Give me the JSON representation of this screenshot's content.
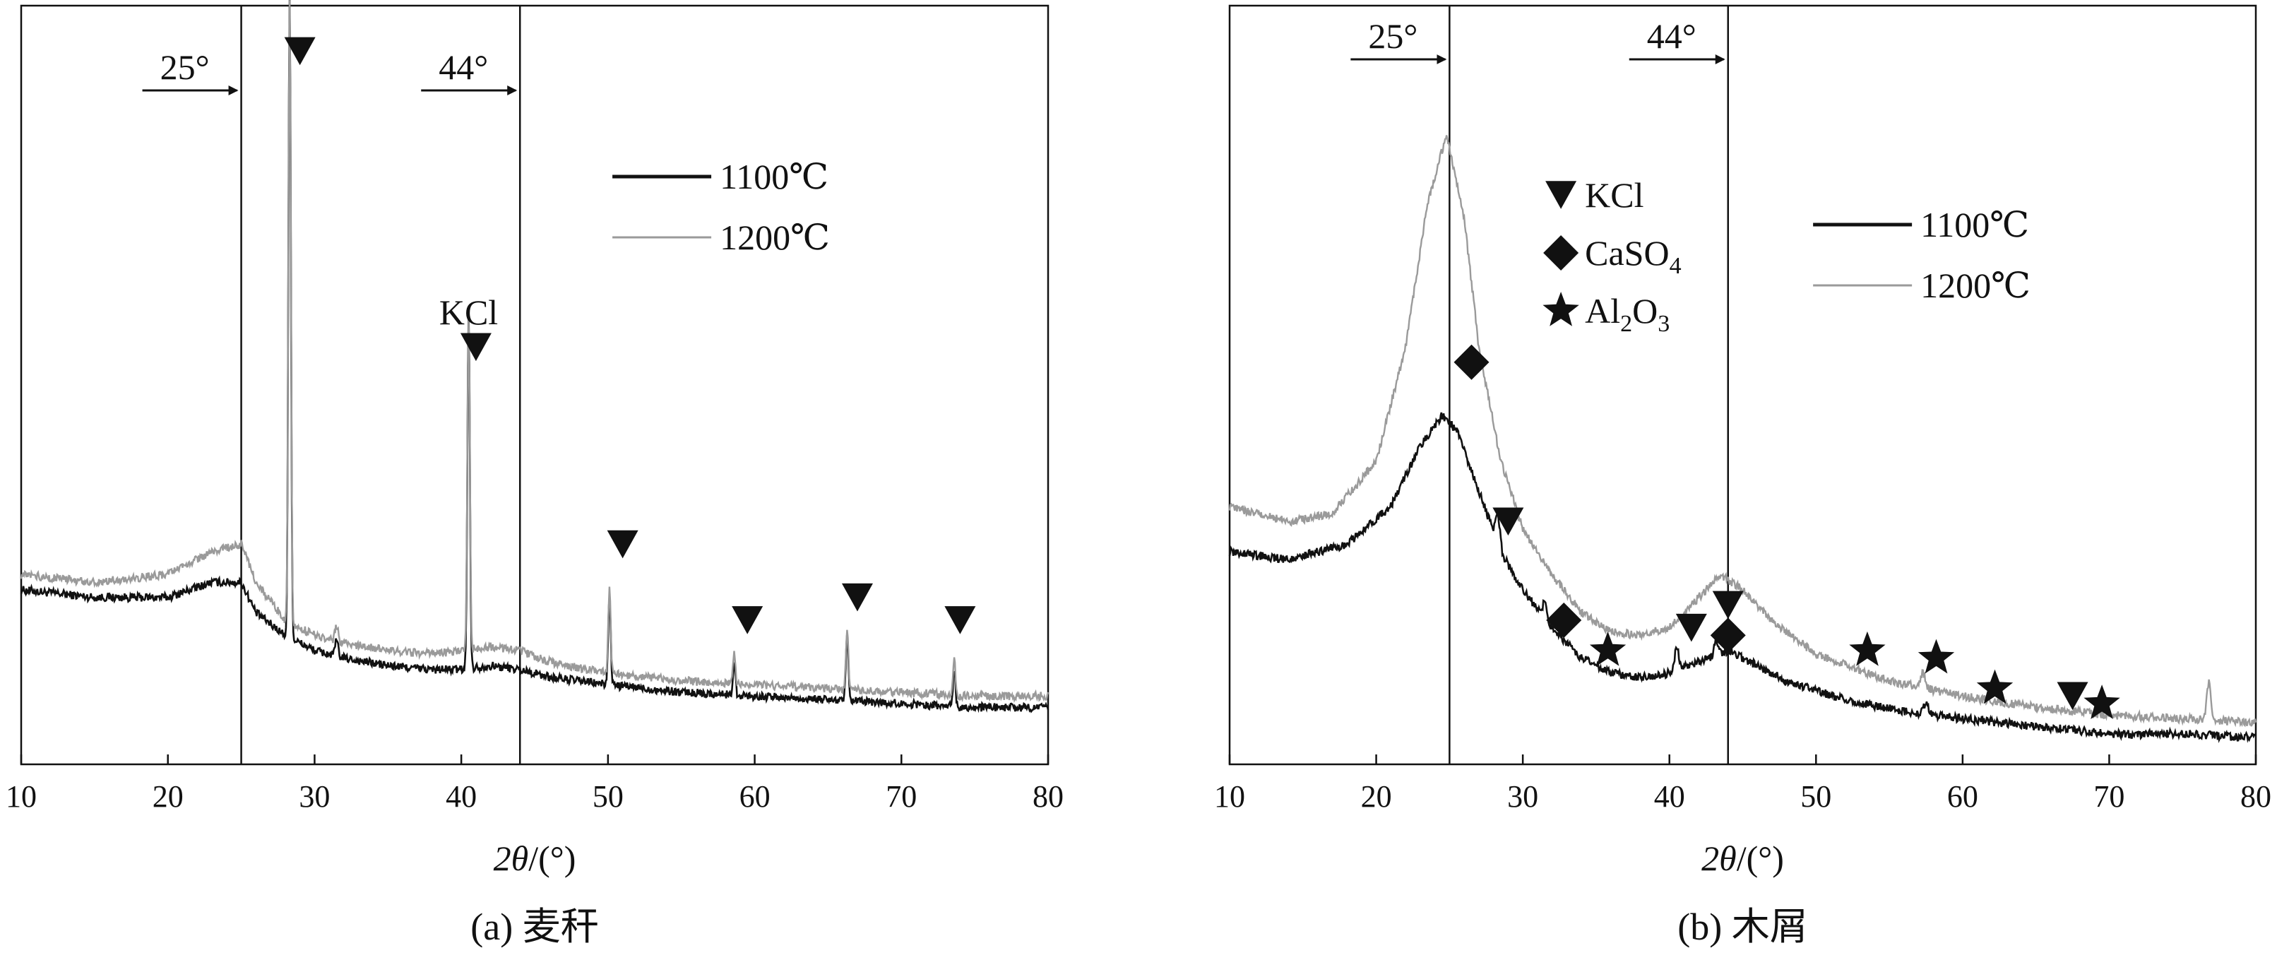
{
  "figure": {
    "x_unit": "2θ/(°)"
  },
  "chart_data": [
    {
      "type": "line",
      "caption": "(a) 麦秆",
      "xlabel": "2θ/(°)",
      "xlim": [
        10,
        80
      ],
      "xticks": [
        10,
        20,
        30,
        40,
        50,
        60,
        70,
        80
      ],
      "yticks": [],
      "ylim": [
        0,
        100
      ],
      "reference_lines": [
        {
          "x": 25,
          "label": "25°"
        },
        {
          "x": 44,
          "label": "44°"
        }
      ],
      "legend": {
        "placement": "top-right",
        "entries": [
          {
            "name": "1100℃",
            "color": "#111111"
          },
          {
            "name": "1200℃",
            "color": "#9a9a9a"
          }
        ]
      },
      "annotations": [
        {
          "text": "KCl",
          "x": 40.5,
          "y": 58
        }
      ],
      "markers": [
        {
          "symbol": "down-triangle",
          "phase": "KCl",
          "x": 29.0,
          "y": 94
        },
        {
          "symbol": "down-triangle",
          "phase": "KCl",
          "x": 41.0,
          "y": 55
        },
        {
          "symbol": "down-triangle",
          "phase": "KCl",
          "x": 51.0,
          "y": 29
        },
        {
          "symbol": "down-triangle",
          "phase": "KCl",
          "x": 59.5,
          "y": 19
        },
        {
          "symbol": "down-triangle",
          "phase": "KCl",
          "x": 67.0,
          "y": 22
        },
        {
          "symbol": "down-triangle",
          "phase": "KCl",
          "x": 74.0,
          "y": 19
        }
      ],
      "series": [
        {
          "name": "1100℃",
          "color": "#111111",
          "baseline": [
            [
              10,
              23
            ],
            [
              15,
              22
            ],
            [
              20,
              22
            ],
            [
              23,
              24
            ],
            [
              25,
              24
            ],
            [
              26,
              20
            ],
            [
              28,
              17
            ],
            [
              30,
              15
            ],
            [
              32,
              14
            ],
            [
              35,
              13
            ],
            [
              38,
              12.5
            ],
            [
              40,
              12.5
            ],
            [
              42,
              13
            ],
            [
              44,
              12.5
            ],
            [
              46,
              11.5
            ],
            [
              50,
              10.5
            ],
            [
              55,
              9.5
            ],
            [
              60,
              9
            ],
            [
              65,
              8.5
            ],
            [
              70,
              8
            ],
            [
              75,
              7.5
            ],
            [
              80,
              7.5
            ]
          ],
          "peaks": [
            [
              28.3,
              85,
              0.12
            ],
            [
              31.5,
              2,
              0.15
            ],
            [
              40.5,
              47,
              0.12
            ],
            [
              50.1,
              12,
              0.12
            ],
            [
              58.6,
              4.5,
              0.12
            ],
            [
              66.3,
              8.5,
              0.12
            ],
            [
              73.6,
              5,
              0.12
            ]
          ]
        },
        {
          "name": "1200℃",
          "color": "#9a9a9a",
          "baseline": [
            [
              10,
              25
            ],
            [
              15,
              24
            ],
            [
              20,
              25
            ],
            [
              23,
              28
            ],
            [
              25,
              29
            ],
            [
              26,
              24
            ],
            [
              28,
              19
            ],
            [
              30,
              17
            ],
            [
              32,
              16
            ],
            [
              35,
              15
            ],
            [
              38,
              14.5
            ],
            [
              40,
              15
            ],
            [
              42,
              15.5
            ],
            [
              44,
              15
            ],
            [
              46,
              13.5
            ],
            [
              50,
              12
            ],
            [
              55,
              11
            ],
            [
              60,
              10.5
            ],
            [
              65,
              10
            ],
            [
              70,
              9.5
            ],
            [
              75,
              9
            ],
            [
              80,
              9
            ]
          ],
          "peaks": [
            [
              28.3,
              82,
              0.12
            ],
            [
              31.5,
              2,
              0.15
            ],
            [
              40.5,
              44,
              0.12
            ],
            [
              50.1,
              11,
              0.12
            ],
            [
              58.6,
              4,
              0.12
            ],
            [
              66.3,
              8,
              0.12
            ],
            [
              73.6,
              4.5,
              0.12
            ]
          ]
        }
      ]
    },
    {
      "type": "line",
      "caption": "(b) 木屑",
      "xlabel": "2θ/(°)",
      "xlim": [
        10,
        80
      ],
      "xticks": [
        10,
        20,
        30,
        40,
        50,
        60,
        70,
        80
      ],
      "yticks": [],
      "ylim": [
        0,
        100
      ],
      "reference_lines": [
        {
          "x": 25,
          "label": "25°"
        },
        {
          "x": 44,
          "label": "44°"
        }
      ],
      "legend": {
        "placement": "top-right",
        "entries": [
          {
            "name": "1100℃",
            "color": "#111111"
          },
          {
            "name": "1200℃",
            "color": "#9a9a9a"
          }
        ]
      },
      "phase_legend": [
        {
          "symbol": "down-triangle",
          "label": "KCl"
        },
        {
          "symbol": "diamond",
          "label": "CaSO",
          "sub": "4"
        },
        {
          "symbol": "star",
          "label": "Al",
          "sub": "2",
          "label2": "O",
          "sub2": "3"
        }
      ],
      "markers": [
        {
          "symbol": "diamond",
          "phase": "CaSO4",
          "x": 26.5,
          "y": 53
        },
        {
          "symbol": "down-triangle",
          "phase": "KCl",
          "x": 29.0,
          "y": 32
        },
        {
          "symbol": "diamond",
          "phase": "CaSO4",
          "x": 32.8,
          "y": 19
        },
        {
          "symbol": "star",
          "phase": "Al2O3",
          "x": 35.8,
          "y": 15
        },
        {
          "symbol": "down-triangle",
          "phase": "KCl",
          "x": 41.5,
          "y": 18
        },
        {
          "symbol": "down-triangle",
          "phase": "KCl",
          "x": 44.0,
          "y": 21
        },
        {
          "symbol": "diamond",
          "phase": "CaSO4",
          "x": 44.0,
          "y": 17
        },
        {
          "symbol": "star",
          "phase": "Al2O3",
          "x": 53.5,
          "y": 15
        },
        {
          "symbol": "star",
          "phase": "Al2O3",
          "x": 58.2,
          "y": 14
        },
        {
          "symbol": "star",
          "phase": "Al2O3",
          "x": 62.2,
          "y": 10
        },
        {
          "symbol": "down-triangle",
          "phase": "KCl",
          "x": 67.5,
          "y": 9
        },
        {
          "symbol": "star",
          "phase": "Al2O3",
          "x": 69.5,
          "y": 8
        }
      ],
      "series": [
        {
          "name": "1100℃",
          "color": "#111111",
          "baseline": [
            [
              10,
              28
            ],
            [
              14,
              27
            ],
            [
              18,
              29
            ],
            [
              21,
              34
            ],
            [
              23,
              42
            ],
            [
              24.5,
              46
            ],
            [
              25.5,
              44
            ],
            [
              27,
              36
            ],
            [
              28.5,
              28
            ],
            [
              30,
              23
            ],
            [
              32,
              18
            ],
            [
              34,
              14
            ],
            [
              36,
              12
            ],
            [
              38,
              11.5
            ],
            [
              40,
              12
            ],
            [
              42,
              13.5
            ],
            [
              44,
              15
            ],
            [
              46,
              13
            ],
            [
              48,
              11
            ],
            [
              52,
              8.5
            ],
            [
              56,
              7
            ],
            [
              60,
              6
            ],
            [
              65,
              5
            ],
            [
              70,
              4
            ],
            [
              75,
              4
            ],
            [
              80,
              3.5
            ]
          ],
          "peaks": [
            [
              28.3,
              4,
              0.2
            ],
            [
              31.5,
              2,
              0.2
            ],
            [
              40.5,
              3,
              0.2
            ],
            [
              43.2,
              2,
              0.2
            ],
            [
              57.5,
              1.5,
              0.2
            ]
          ]
        },
        {
          "name": "1200℃",
          "color": "#9a9a9a",
          "baseline": [
            [
              10,
              34
            ],
            [
              14,
              32
            ],
            [
              17,
              33
            ],
            [
              20,
              40
            ],
            [
              22,
              55
            ],
            [
              23.5,
              74
            ],
            [
              24.8,
              83
            ],
            [
              26,
              72
            ],
            [
              27,
              55
            ],
            [
              28.5,
              40
            ],
            [
              30,
              31
            ],
            [
              32,
              25
            ],
            [
              34,
              20
            ],
            [
              36,
              17.5
            ],
            [
              38,
              17
            ],
            [
              40,
              18
            ],
            [
              42,
              22
            ],
            [
              43.5,
              25
            ],
            [
              45,
              23
            ],
            [
              47,
              19
            ],
            [
              50,
              14.5
            ],
            [
              55,
              11
            ],
            [
              60,
              9
            ],
            [
              65,
              7.5
            ],
            [
              70,
              6.5
            ],
            [
              75,
              6
            ],
            [
              80,
              5.5
            ]
          ],
          "peaks": [
            [
              57.3,
              2,
              0.2
            ],
            [
              76.8,
              5,
              0.2
            ]
          ]
        }
      ]
    }
  ]
}
